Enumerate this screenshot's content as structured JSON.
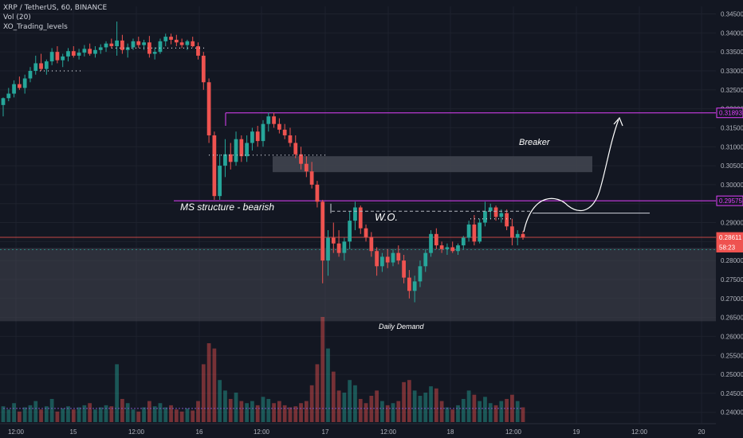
{
  "legend": {
    "symbol_line": "XRP / TetherUS, 60, BINANCE",
    "volume_label": "Vol (20)",
    "indicator_label": "XO_Trading_levels"
  },
  "annotations": {
    "ms_structure": "MS structure - bearish",
    "wo": "W.O.",
    "breaker": "Breaker",
    "daily_demand": "Daily Demand"
  },
  "colors": {
    "background": "#131722",
    "bull": "#26a69a",
    "bear": "#ef5350",
    "level_line": "#e040fb",
    "zone": "#434651",
    "current_price_line": "#ef5350",
    "projection": "#ffffff"
  },
  "chart_data": {
    "type": "candlestick",
    "symbol": "XRP / TetherUS",
    "timeframe": "60",
    "exchange": "BINANCE",
    "x_tick_labels": [
      "12:00",
      "15",
      "12:00",
      "16",
      "12:00",
      "17",
      "12:00",
      "18",
      "12:00",
      "19",
      "12:00",
      "20"
    ],
    "y_tick_labels": [
      "0.34500",
      "0.34000",
      "0.33500",
      "0.33000",
      "0.32500",
      "0.32000",
      "0.31500",
      "0.31000",
      "0.30500",
      "0.30000",
      "0.29500",
      "0.29000",
      "0.28500",
      "0.28000",
      "0.27500",
      "0.27000",
      "0.26500",
      "0.26000",
      "0.25500",
      "0.25000",
      "0.24500",
      "0.24000"
    ],
    "y_range": [
      0.237,
      0.347
    ],
    "price_tags": [
      {
        "label": "0.31893",
        "value": 0.31893,
        "color": "#e040fb"
      },
      {
        "label": "0.29575",
        "value": 0.29575,
        "color": "#e040fb"
      },
      {
        "label": "0.28611",
        "value": 0.28611,
        "color": "#ef5350"
      },
      {
        "label": "58:23",
        "value": 0.2835,
        "color": "#ef5350"
      }
    ],
    "levels": [
      {
        "name": "upper-resistance",
        "price": 0.31893,
        "color": "#e040fb"
      },
      {
        "name": "ms-structure-level",
        "price": 0.29575,
        "color": "#e040fb"
      },
      {
        "name": "current-price",
        "price": 0.28611,
        "color": "#ef5350"
      }
    ],
    "zones": [
      {
        "name": "breaker-zone",
        "top": 0.3075,
        "bottom": 0.3033
      },
      {
        "name": "daily-demand-zone",
        "top": 0.2833,
        "bottom": 0.264
      }
    ],
    "ohlc": [
      [
        0.321,
        0.323,
        0.318,
        0.3228
      ],
      [
        0.3228,
        0.3255,
        0.322,
        0.324
      ],
      [
        0.324,
        0.3275,
        0.323,
        0.3265
      ],
      [
        0.3265,
        0.3285,
        0.325,
        0.3255
      ],
      [
        0.3255,
        0.329,
        0.324,
        0.328
      ],
      [
        0.328,
        0.331,
        0.327,
        0.33
      ],
      [
        0.33,
        0.334,
        0.329,
        0.332
      ],
      [
        0.332,
        0.3345,
        0.33,
        0.3305
      ],
      [
        0.3305,
        0.333,
        0.329,
        0.3325
      ],
      [
        0.3325,
        0.336,
        0.3315,
        0.335
      ],
      [
        0.335,
        0.3365,
        0.332,
        0.3328
      ],
      [
        0.3328,
        0.3345,
        0.331,
        0.3338
      ],
      [
        0.3338,
        0.336,
        0.3325,
        0.3352
      ],
      [
        0.3352,
        0.3365,
        0.3335,
        0.334
      ],
      [
        0.334,
        0.3358,
        0.333,
        0.3348
      ],
      [
        0.3348,
        0.3368,
        0.3338,
        0.3358
      ],
      [
        0.3358,
        0.3372,
        0.334,
        0.3345
      ],
      [
        0.3345,
        0.3365,
        0.3335,
        0.3355
      ],
      [
        0.3355,
        0.337,
        0.3345,
        0.3362
      ],
      [
        0.3362,
        0.3378,
        0.335,
        0.3372
      ],
      [
        0.3372,
        0.3385,
        0.336,
        0.3365
      ],
      [
        0.3365,
        0.343,
        0.334,
        0.338
      ],
      [
        0.338,
        0.3395,
        0.3345,
        0.3355
      ],
      [
        0.3355,
        0.3372,
        0.3335,
        0.3362
      ],
      [
        0.3362,
        0.3385,
        0.3355,
        0.3378
      ],
      [
        0.3378,
        0.339,
        0.336,
        0.3368
      ],
      [
        0.3368,
        0.3382,
        0.3355,
        0.3375
      ],
      [
        0.3375,
        0.3392,
        0.3335,
        0.3345
      ],
      [
        0.3345,
        0.3362,
        0.333,
        0.335
      ],
      [
        0.335,
        0.3385,
        0.3345,
        0.3378
      ],
      [
        0.3378,
        0.3398,
        0.3365,
        0.339
      ],
      [
        0.339,
        0.3398,
        0.337,
        0.3382
      ],
      [
        0.3382,
        0.3395,
        0.3365,
        0.3375
      ],
      [
        0.3375,
        0.3385,
        0.336,
        0.3368
      ],
      [
        0.3368,
        0.3382,
        0.3355,
        0.3378
      ],
      [
        0.3378,
        0.339,
        0.3362,
        0.3365
      ],
      [
        0.3365,
        0.3375,
        0.333,
        0.334
      ],
      [
        0.334,
        0.335,
        0.325,
        0.327
      ],
      [
        0.327,
        0.328,
        0.311,
        0.313
      ],
      [
        0.313,
        0.314,
        0.296,
        0.297
      ],
      [
        0.297,
        0.308,
        0.296,
        0.305
      ],
      [
        0.305,
        0.312,
        0.302,
        0.308
      ],
      [
        0.308,
        0.311,
        0.304,
        0.306
      ],
      [
        0.306,
        0.314,
        0.305,
        0.312
      ],
      [
        0.312,
        0.313,
        0.306,
        0.3075
      ],
      [
        0.3075,
        0.313,
        0.306,
        0.311
      ],
      [
        0.311,
        0.315,
        0.309,
        0.314
      ],
      [
        0.314,
        0.3155,
        0.31,
        0.3115
      ],
      [
        0.3115,
        0.317,
        0.31,
        0.316
      ],
      [
        0.316,
        0.319,
        0.314,
        0.318
      ],
      [
        0.318,
        0.319,
        0.315,
        0.316
      ],
      [
        0.316,
        0.3175,
        0.3135,
        0.3145
      ],
      [
        0.3145,
        0.316,
        0.312,
        0.313
      ],
      [
        0.313,
        0.315,
        0.31,
        0.311
      ],
      [
        0.311,
        0.313,
        0.307,
        0.308
      ],
      [
        0.308,
        0.31,
        0.304,
        0.3055
      ],
      [
        0.3055,
        0.3075,
        0.302,
        0.3035
      ],
      [
        0.3035,
        0.306,
        0.299,
        0.3
      ],
      [
        0.3,
        0.301,
        0.294,
        0.2955
      ],
      [
        0.2955,
        0.296,
        0.274,
        0.28
      ],
      [
        0.28,
        0.288,
        0.276,
        0.286
      ],
      [
        0.286,
        0.29,
        0.282,
        0.2845
      ],
      [
        0.2845,
        0.288,
        0.281,
        0.282
      ],
      [
        0.282,
        0.286,
        0.28,
        0.285
      ],
      [
        0.285,
        0.293,
        0.283,
        0.2905
      ],
      [
        0.2905,
        0.2955,
        0.288,
        0.294
      ],
      [
        0.294,
        0.2945,
        0.287,
        0.2885
      ],
      [
        0.2885,
        0.2895,
        0.285,
        0.2862
      ],
      [
        0.2862,
        0.2875,
        0.281,
        0.2825
      ],
      [
        0.2825,
        0.2835,
        0.276,
        0.2785
      ],
      [
        0.2785,
        0.282,
        0.277,
        0.281
      ],
      [
        0.281,
        0.283,
        0.278,
        0.2795
      ],
      [
        0.2795,
        0.283,
        0.2785,
        0.282
      ],
      [
        0.282,
        0.284,
        0.279,
        0.28
      ],
      [
        0.28,
        0.2815,
        0.274,
        0.2755
      ],
      [
        0.2755,
        0.2775,
        0.27,
        0.272
      ],
      [
        0.272,
        0.276,
        0.269,
        0.2745
      ],
      [
        0.2745,
        0.28,
        0.273,
        0.2785
      ],
      [
        0.2785,
        0.283,
        0.277,
        0.282
      ],
      [
        0.282,
        0.288,
        0.281,
        0.287
      ],
      [
        0.287,
        0.2885,
        0.283,
        0.284
      ],
      [
        0.284,
        0.285,
        0.282,
        0.283
      ],
      [
        0.283,
        0.2845,
        0.2815,
        0.2835
      ],
      [
        0.2835,
        0.285,
        0.282,
        0.2825
      ],
      [
        0.2825,
        0.2845,
        0.2815,
        0.284
      ],
      [
        0.284,
        0.2865,
        0.283,
        0.286
      ],
      [
        0.286,
        0.2905,
        0.285,
        0.2895
      ],
      [
        0.2895,
        0.292,
        0.284,
        0.285
      ],
      [
        0.285,
        0.291,
        0.2845,
        0.29
      ],
      [
        0.29,
        0.2955,
        0.289,
        0.293
      ],
      [
        0.293,
        0.295,
        0.291,
        0.294
      ],
      [
        0.294,
        0.2945,
        0.2905,
        0.2915
      ],
      [
        0.2915,
        0.2935,
        0.29,
        0.2925
      ],
      [
        0.2925,
        0.2935,
        0.288,
        0.289
      ],
      [
        0.289,
        0.291,
        0.284,
        0.286
      ],
      [
        0.286,
        0.288,
        0.284,
        0.287
      ],
      [
        0.287,
        0.2878,
        0.2855,
        0.2861
      ]
    ],
    "volume": [
      0.15,
      0.12,
      0.18,
      0.1,
      0.14,
      0.16,
      0.2,
      0.12,
      0.15,
      0.22,
      0.1,
      0.13,
      0.15,
      0.12,
      0.14,
      0.16,
      0.18,
      0.12,
      0.14,
      0.16,
      0.15,
      0.55,
      0.22,
      0.18,
      0.12,
      0.1,
      0.14,
      0.2,
      0.15,
      0.18,
      0.14,
      0.16,
      0.12,
      0.1,
      0.13,
      0.11,
      0.2,
      0.55,
      0.75,
      0.7,
      0.4,
      0.3,
      0.22,
      0.28,
      0.2,
      0.18,
      0.2,
      0.16,
      0.24,
      0.22,
      0.18,
      0.2,
      0.16,
      0.14,
      0.15,
      0.18,
      0.2,
      0.35,
      0.55,
      1.0,
      0.7,
      0.48,
      0.3,
      0.28,
      0.4,
      0.35,
      0.22,
      0.18,
      0.25,
      0.3,
      0.2,
      0.16,
      0.18,
      0.2,
      0.38,
      0.4,
      0.3,
      0.25,
      0.28,
      0.34,
      0.32,
      0.2,
      0.14,
      0.12,
      0.16,
      0.22,
      0.3,
      0.26,
      0.2,
      0.24,
      0.18,
      0.16,
      0.2,
      0.22,
      0.26,
      0.2,
      0.14
    ],
    "volume_ma_line": true
  }
}
